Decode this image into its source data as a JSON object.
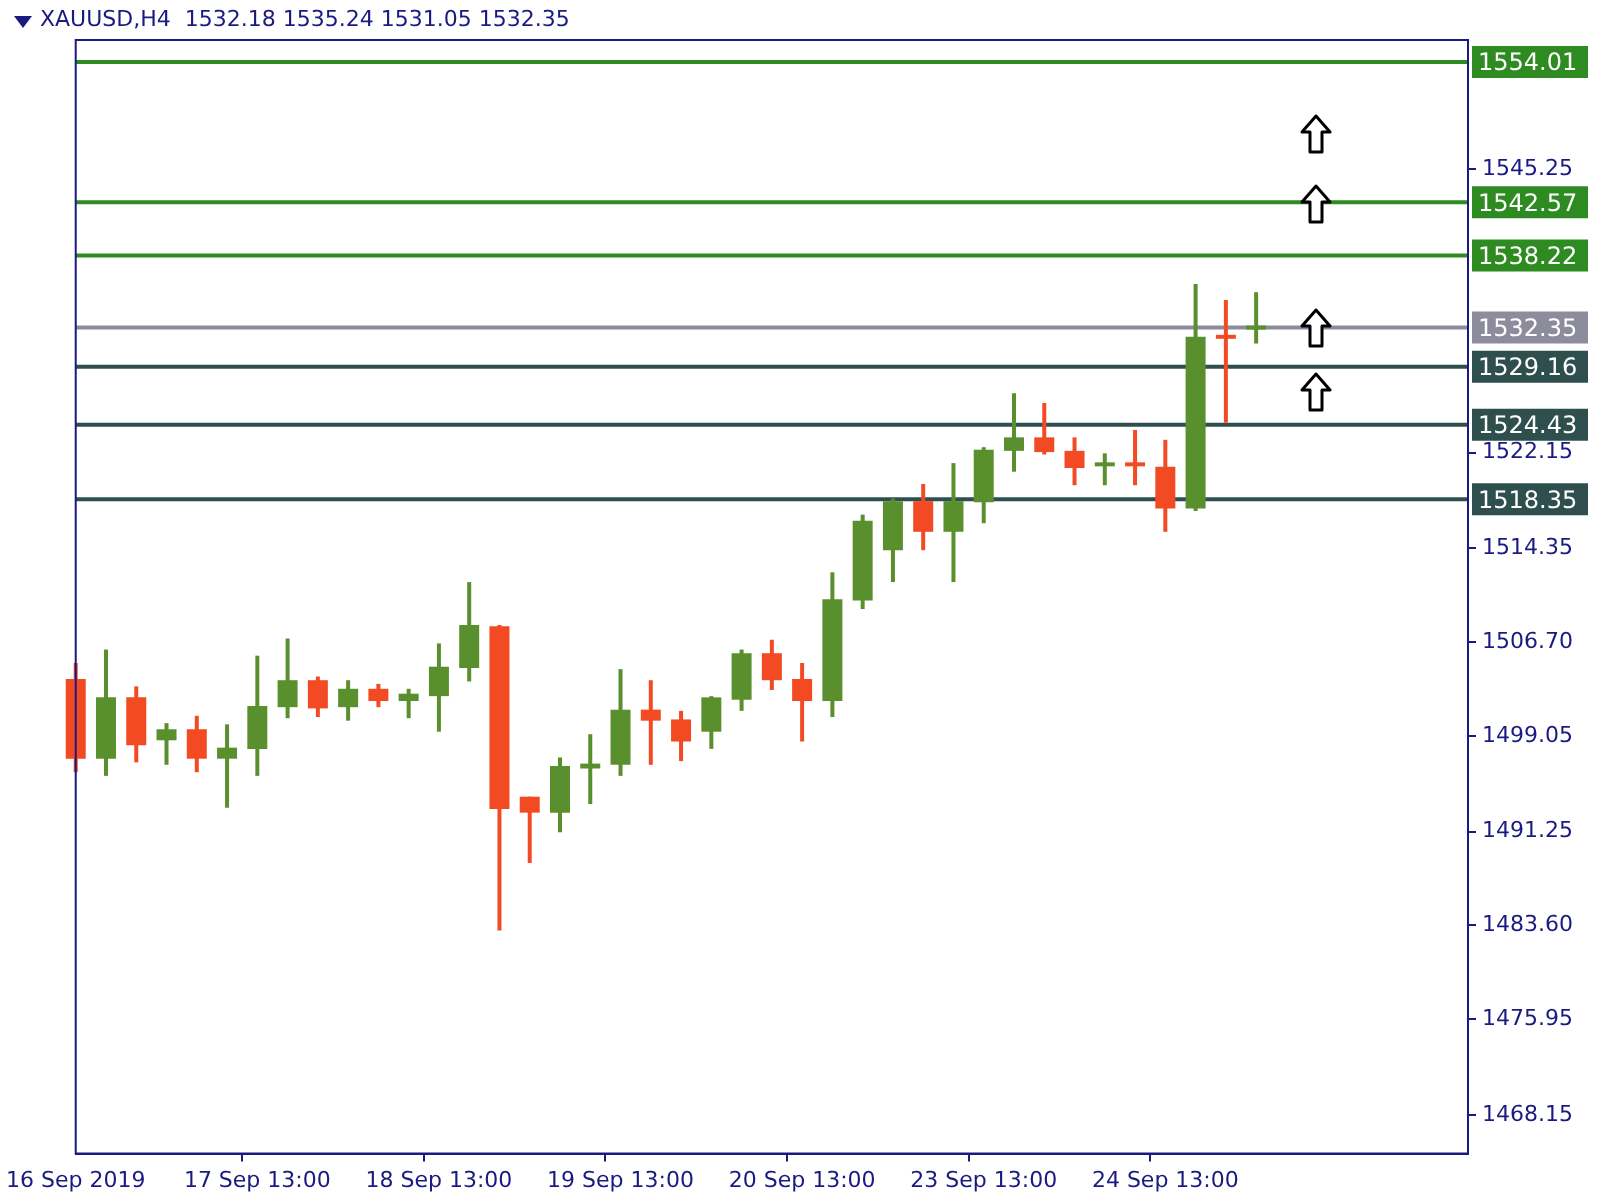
{
  "chart_data": {
    "type": "candlestick",
    "title": "XAUUSD,H4  1532.18 1535.24 1531.05 1532.35",
    "categories": [
      "16 Sep 2019",
      null,
      null,
      null,
      null,
      null,
      "17 Sep 13:00",
      null,
      null,
      null,
      null,
      null,
      "18 Sep 13:00",
      null,
      null,
      null,
      null,
      null,
      "19 Sep 13:00",
      null,
      null,
      null,
      null,
      null,
      "20 Sep 13:00",
      null,
      null,
      null,
      null,
      null,
      "23 Sep 13:00",
      null,
      null,
      null,
      null,
      null,
      "24 Sep 13:00",
      null,
      null,
      null,
      null,
      null,
      null,
      null,
      null,
      null,
      null
    ],
    "ohlc": [
      [
        1503.7,
        1505.0,
        1496.1,
        1497.2
      ],
      [
        1497.2,
        1506.1,
        1495.8,
        1502.2
      ],
      [
        1502.2,
        1503.1,
        1496.9,
        1498.3
      ],
      [
        1498.7,
        1500.1,
        1496.7,
        1499.6
      ],
      [
        1499.6,
        1500.7,
        1496.1,
        1497.2
      ],
      [
        1497.2,
        1500.0,
        1493.2,
        1498.1
      ],
      [
        1498.0,
        1505.6,
        1495.8,
        1501.5
      ],
      [
        1501.4,
        1507.0,
        1500.5,
        1503.6
      ],
      [
        1503.6,
        1503.9,
        1500.6,
        1501.3
      ],
      [
        1501.4,
        1503.6,
        1500.3,
        1502.9
      ],
      [
        1502.9,
        1503.3,
        1501.4,
        1501.9
      ],
      [
        1501.9,
        1502.9,
        1500.5,
        1502.5
      ],
      [
        1502.3,
        1506.6,
        1499.4,
        1504.7
      ],
      [
        1504.6,
        1511.6,
        1503.5,
        1508.1
      ],
      [
        1508.0,
        1508.1,
        1483.2,
        1493.1
      ],
      [
        1494.1,
        1494.1,
        1488.7,
        1492.8
      ],
      [
        1492.8,
        1497.3,
        1491.2,
        1496.6
      ],
      [
        1496.4,
        1499.2,
        1493.5,
        1496.8
      ],
      [
        1496.7,
        1504.5,
        1495.8,
        1501.2
      ],
      [
        1501.2,
        1503.6,
        1496.7,
        1500.3
      ],
      [
        1500.4,
        1501.1,
        1497.0,
        1498.6
      ],
      [
        1499.4,
        1502.3,
        1498.0,
        1502.2
      ],
      [
        1502.0,
        1506.1,
        1501.1,
        1505.8
      ],
      [
        1505.8,
        1506.9,
        1502.8,
        1503.6
      ],
      [
        1503.7,
        1505.0,
        1498.6,
        1501.9
      ],
      [
        1501.9,
        1512.4,
        1500.6,
        1510.2
      ],
      [
        1510.1,
        1517.1,
        1509.4,
        1516.6
      ],
      [
        1514.2,
        1518.4,
        1511.6,
        1518.2
      ],
      [
        1518.2,
        1519.6,
        1514.2,
        1515.7
      ],
      [
        1515.7,
        1521.3,
        1511.6,
        1518.2
      ],
      [
        1518.1,
        1522.6,
        1516.4,
        1522.4
      ],
      [
        1522.3,
        1527.0,
        1520.6,
        1523.4
      ],
      [
        1523.4,
        1526.2,
        1522.0,
        1522.2
      ],
      [
        1522.3,
        1523.4,
        1519.5,
        1520.9
      ],
      [
        1521.0,
        1522.1,
        1519.5,
        1521.2
      ],
      [
        1521.2,
        1524.0,
        1519.5,
        1521.0
      ],
      [
        1521.0,
        1523.2,
        1515.7,
        1517.6
      ],
      [
        1517.6,
        1535.9,
        1517.4,
        1531.6
      ],
      [
        1531.6,
        1534.6,
        1524.6,
        1531.4
      ],
      [
        1532.18,
        1535.24,
        1531.05,
        1532.35
      ],
      null,
      null,
      null,
      null,
      null,
      null,
      null
    ],
    "colors": [
      "#f24a23",
      "#5a8f2e",
      "#f24a23",
      "#5a8f2e",
      "#f24a23",
      "#5a8f2e",
      "#5a8f2e",
      "#5a8f2e",
      "#f24a23",
      "#5a8f2e",
      "#f24a23",
      "#5a8f2e",
      "#5a8f2e",
      "#5a8f2e",
      "#f24a23",
      "#f24a23",
      "#5a8f2e",
      "#5a8f2e",
      "#5a8f2e",
      "#f24a23",
      "#f24a23",
      "#5a8f2e",
      "#5a8f2e",
      "#f24a23",
      "#f24a23",
      "#5a8f2e",
      "#5a8f2e",
      "#5a8f2e",
      "#f24a23",
      "#5a8f2e",
      "#5a8f2e",
      "#5a8f2e",
      "#f24a23",
      "#f24a23",
      "#5a8f2e",
      "#f24a23",
      "#f24a23",
      "#5a8f2e",
      "#f24a23",
      "#5a8f2e",
      null,
      null,
      null,
      null,
      null,
      null,
      null
    ],
    "ylim": [
      1465.0,
      1555.8
    ],
    "yticks": [
      {
        "value": 1468.15,
        "label": "1468.15"
      },
      {
        "value": 1475.95,
        "label": "1475.95"
      },
      {
        "value": 1483.6,
        "label": "1483.60"
      },
      {
        "value": 1491.25,
        "label": "1491.25"
      },
      {
        "value": 1499.05,
        "label": "1499.05"
      },
      {
        "value": 1506.7,
        "label": "1506.70"
      },
      {
        "value": 1514.35,
        "label": "1514.35"
      },
      {
        "value": 1522.15,
        "label": "1522.15"
      },
      {
        "value": 1545.25,
        "label": "1545.25"
      }
    ],
    "ref_lines": [
      {
        "axis": "y",
        "value": 1554.01,
        "label": "1554.01",
        "color": "#2e8b22"
      },
      {
        "axis": "y",
        "value": 1542.57,
        "label": "1542.57",
        "color": "#2e8b22"
      },
      {
        "axis": "y",
        "value": 1538.22,
        "label": "1538.22",
        "color": "#2e8b22"
      },
      {
        "axis": "y",
        "value": 1532.35,
        "label": "1532.35",
        "color": "#8c8c9c"
      },
      {
        "axis": "y",
        "value": 1529.16,
        "label": "1529.16",
        "color": "#2f4f4f"
      },
      {
        "axis": "y",
        "value": 1524.43,
        "label": "1524.43",
        "color": "#2f4f4f"
      },
      {
        "axis": "y",
        "value": 1518.35,
        "label": "1518.35",
        "color": "#2f4f4f"
      }
    ],
    "grid": false,
    "legend": false
  }
}
